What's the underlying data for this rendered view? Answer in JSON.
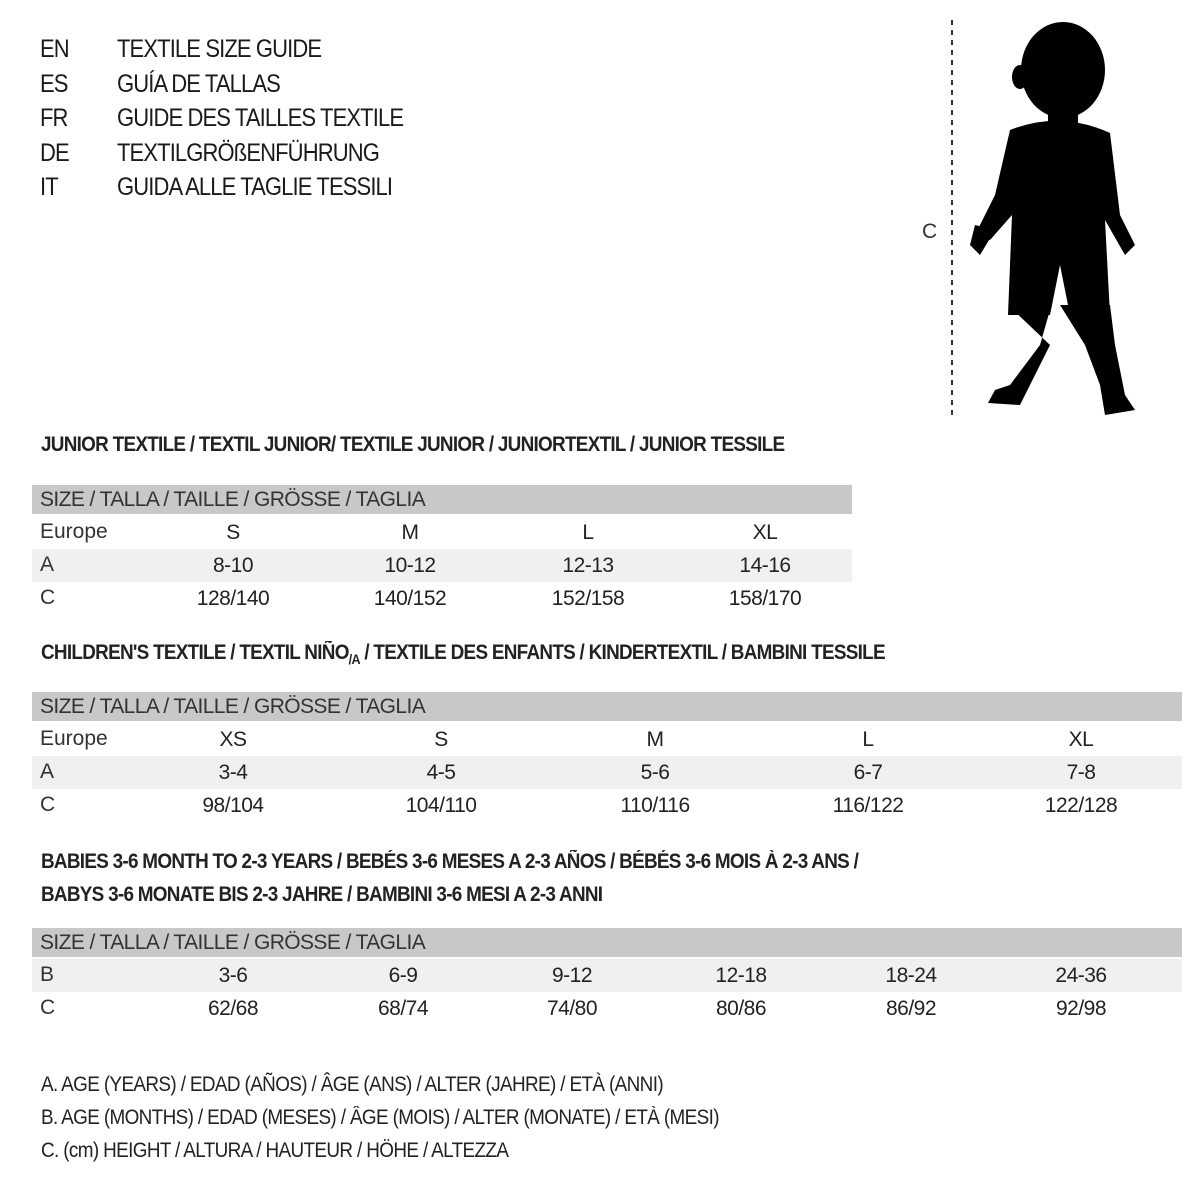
{
  "title_lines": [
    {
      "code": "EN",
      "text": "TEXTILE SIZE GUIDE"
    },
    {
      "code": "ES",
      "text": "GUÍA DE TALLAS"
    },
    {
      "code": "FR",
      "text": "GUIDE DES TAILLES TEXTILE"
    },
    {
      "code": "DE",
      "text": "TEXTILGRÖßENFÜHRUNG"
    },
    {
      "code": "IT",
      "text": "GUIDA ALLE TAGLIE TESSILI"
    }
  ],
  "figure": {
    "measure_label": "C",
    "icon": "child-silhouette-icon"
  },
  "junior": {
    "heading": "JUNIOR TEXTILE / TEXTIL JUNIOR/ TEXTILE JUNIOR / JUNIORTEXTIL / JUNIOR TESSILE",
    "header": "SIZE / TALLA / TAILLE / GRÖSSE / TAGLIA",
    "rows": [
      {
        "label": "Europe",
        "cells": [
          "S",
          "M",
          "L",
          "XL"
        ]
      },
      {
        "label": "A",
        "cells": [
          "8-10",
          "10-12",
          "12-13",
          "14-16"
        ]
      },
      {
        "label": "C",
        "cells": [
          "128/140",
          "140/152",
          "152/158",
          "158/170"
        ]
      }
    ]
  },
  "children": {
    "heading": "CHILDREN'S TEXTILE / TEXTIL NIÑO",
    "heading_sub": "/A",
    "heading_rest": " / TEXTILE DES ENFANTS / KINDERTEXTIL / BAMBINI TESSILE",
    "header": "SIZE / TALLA / TAILLE / GRÖSSE / TAGLIA",
    "rows": [
      {
        "label": "Europe",
        "cells": [
          "XS",
          "S",
          "M",
          "L",
          "XL"
        ]
      },
      {
        "label": "A",
        "cells": [
          "3-4",
          "4-5",
          "5-6",
          "6-7",
          "7-8"
        ]
      },
      {
        "label": "C",
        "cells": [
          "98/104",
          "104/110",
          "110/116",
          "116/122",
          "122/128"
        ]
      }
    ]
  },
  "babies": {
    "heading_1": "BABIES 3-6 MONTH TO 2-3 YEARS / BEBÉS 3-6 MESES A 2-3 AÑOS / BÉBÉS 3-6 MOIS À 2-3 ANS /",
    "heading_2": "BABYS 3-6 MONATE BIS 2-3 JAHRE / BAMBINI 3-6 MESI A 2-3 ANNI",
    "header": "SIZE / TALLA / TAILLE / GRÖSSE / TAGLIA",
    "rows": [
      {
        "label": "B",
        "cells": [
          "3-6",
          "6-9",
          "9-12",
          "12-18",
          "18-24",
          "24-36"
        ]
      },
      {
        "label": "C",
        "cells": [
          "62/68",
          "68/74",
          "74/80",
          "80/86",
          "86/92",
          "92/98"
        ]
      }
    ]
  },
  "legend": [
    "A. AGE (YEARS) / EDAD (AÑOS) / ÂGE (ANS) / ALTER (JAHRE) / ETÀ (ANNI)",
    "B. AGE (MONTHS) / EDAD (MESES) / ÂGE (MOIS) / ALTER (MONATE) / ETÀ (MESI)",
    "C. (cm) HEIGHT / ALTURA / HAUTEUR / HÖHE / ALTEZZA"
  ]
}
